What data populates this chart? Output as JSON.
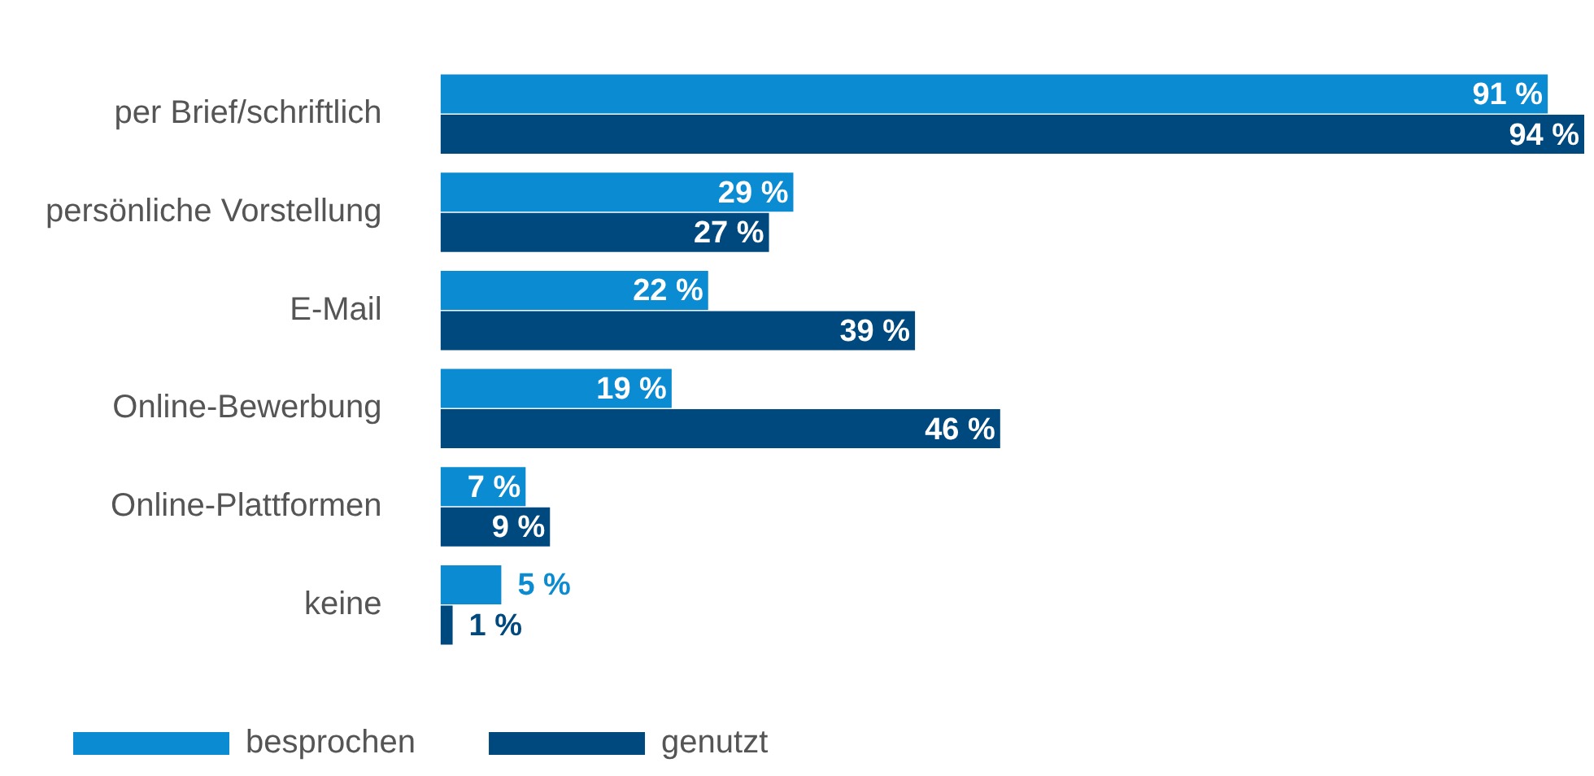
{
  "chart_data": {
    "type": "bar",
    "orientation": "horizontal",
    "categories": [
      "per Brief/schriftlich",
      "persönliche Vorstellung",
      "E-Mail",
      "Online-Bewerbung",
      "Online-Plattformen",
      "keine"
    ],
    "series": [
      {
        "name": "besprochen",
        "color": "#0b8bd1",
        "values": [
          91,
          29,
          22,
          19,
          7,
          5
        ],
        "value_labels": [
          "91 %",
          "29 %",
          "22 %",
          "19 %",
          "7 %",
          "5 %"
        ]
      },
      {
        "name": "genutzt",
        "color": "#00497f",
        "values": [
          94,
          27,
          39,
          46,
          9,
          1
        ],
        "value_labels": [
          "94 %",
          "27 %",
          "39 %",
          "46 %",
          "9 %",
          "1 %"
        ]
      }
    ],
    "xlim": [
      0,
      94
    ],
    "tick_labels": "y",
    "legend": "bottom"
  }
}
